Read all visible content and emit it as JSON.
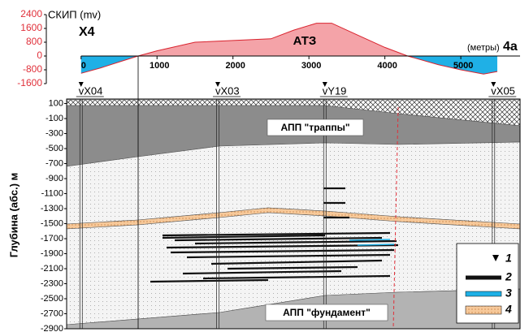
{
  "chart_data": [
    {
      "type": "area",
      "y_label": "СКИП (mv)",
      "x_unit": "(метры)",
      "left_label": "X4",
      "right_label": "4а",
      "annotation": "АТЗ",
      "x": [
        0,
        250,
        500,
        750,
        1000,
        1500,
        2000,
        2500,
        2800,
        3100,
        3300,
        3600,
        4000,
        4300,
        4700,
        5000,
        5300,
        5480
      ],
      "values": [
        -1000,
        -700,
        -350,
        0,
        300,
        800,
        900,
        1000,
        1500,
        1900,
        1900,
        1300,
        500,
        0,
        -500,
        -800,
        -1050,
        -900
      ],
      "xlim": [
        -190,
        5780
      ],
      "xticks": [
        0,
        1000,
        2000,
        3000,
        4000,
        5000
      ],
      "ylim": [
        -1600,
        2400
      ],
      "yticks": [
        2400,
        1600,
        800,
        0,
        -800,
        -1600
      ],
      "positive_color": "#f4a3a8",
      "negative_color": "#1fb0e6",
      "line_color": "#d9232e",
      "tick_color": "#e0303a"
    },
    {
      "type": "section",
      "y_label": "Глубина (абс.) м",
      "xlim": [
        -190,
        5780
      ],
      "ylim": [
        -2900,
        160
      ],
      "yticks": [
        100,
        -100,
        -300,
        -500,
        -700,
        -900,
        -1100,
        -1300,
        -1500,
        -1700,
        -1900,
        -2100,
        -2300,
        -2500,
        -2700,
        -2900
      ],
      "wells": [
        {
          "name": "vX04",
          "x": 0
        },
        {
          "name": "vX03",
          "x": 1800
        },
        {
          "name": "vY19",
          "x": 3210
        },
        {
          "name": "vX05",
          "x": 5430
        }
      ],
      "labels": [
        "АПП \"траппы\"",
        "АПП \"фундамент\""
      ],
      "legend": [
        "1",
        "2",
        "3",
        "4"
      ]
    }
  ]
}
